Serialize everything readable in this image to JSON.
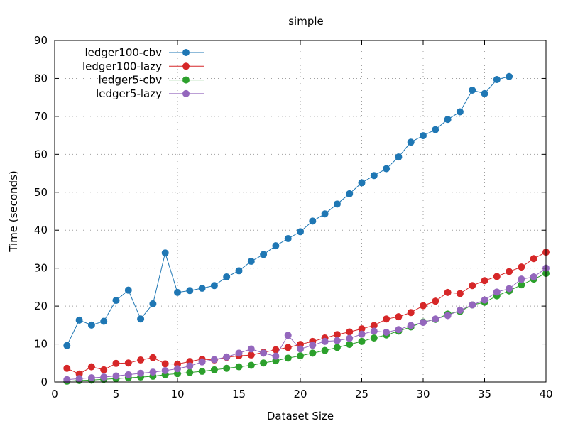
{
  "chart_data": {
    "type": "line",
    "title": "simple",
    "xlabel": "Dataset Size",
    "ylabel": "Time (seconds)",
    "xlim": [
      0,
      40
    ],
    "ylim": [
      0,
      90
    ],
    "xticks": [
      0,
      5,
      10,
      15,
      20,
      25,
      30,
      35,
      40
    ],
    "yticks": [
      0,
      10,
      20,
      30,
      40,
      50,
      60,
      70,
      80,
      90
    ],
    "grid": true,
    "legend_position": "top-left",
    "series": [
      {
        "name": "ledger100-cbv",
        "color": "#1f77b4",
        "x": [
          1,
          2,
          3,
          4,
          5,
          6,
          7,
          8,
          9,
          10,
          11,
          12,
          13,
          14,
          15,
          16,
          17,
          18,
          19,
          20,
          21,
          22,
          23,
          24,
          25,
          26,
          27,
          28,
          29,
          30,
          31,
          32,
          33,
          34,
          35,
          36,
          37
        ],
        "y": [
          9.6,
          16.3,
          15.0,
          16.0,
          21.5,
          24.2,
          16.6,
          20.6,
          34.0,
          23.6,
          24.1,
          24.7,
          25.4,
          27.7,
          29.3,
          31.8,
          33.6,
          35.9,
          37.8,
          39.6,
          42.4,
          44.3,
          46.9,
          49.6,
          52.5,
          54.4,
          56.2,
          59.3,
          63.2,
          64.9,
          66.5,
          69.2,
          71.2,
          76.9,
          76.0,
          79.7,
          80.5
        ]
      },
      {
        "name": "ledger100-lazy",
        "color": "#d62728",
        "x": [
          1,
          2,
          3,
          4,
          5,
          6,
          7,
          8,
          9,
          10,
          11,
          12,
          13,
          14,
          15,
          16,
          17,
          18,
          19,
          20,
          21,
          22,
          23,
          24,
          25,
          26,
          27,
          28,
          29,
          30,
          31,
          32,
          33,
          34,
          35,
          36,
          37,
          38,
          39,
          40
        ],
        "y": [
          3.6,
          2.1,
          4.0,
          3.2,
          4.9,
          5.0,
          5.8,
          6.4,
          4.8,
          4.7,
          5.4,
          6.0,
          5.8,
          6.5,
          6.9,
          7.1,
          7.8,
          8.5,
          9.1,
          9.9,
          10.7,
          11.6,
          12.5,
          13.2,
          14.0,
          14.9,
          16.6,
          17.2,
          18.3,
          20.1,
          21.3,
          23.6,
          23.3,
          25.4,
          26.7,
          27.8,
          29.1,
          30.3,
          32.5,
          34.2
        ]
      },
      {
        "name": "ledger5-cbv",
        "color": "#2ca02c",
        "x": [
          1,
          2,
          3,
          4,
          5,
          6,
          7,
          8,
          9,
          10,
          11,
          12,
          13,
          14,
          15,
          16,
          17,
          18,
          19,
          20,
          21,
          22,
          23,
          24,
          25,
          26,
          27,
          28,
          29,
          30,
          31,
          32,
          33,
          34,
          35,
          36,
          37,
          38,
          39,
          40
        ],
        "y": [
          0.2,
          0.4,
          0.5,
          0.7,
          0.9,
          1.1,
          1.3,
          1.5,
          1.9,
          2.2,
          2.5,
          2.8,
          3.2,
          3.6,
          4.0,
          4.4,
          5.0,
          5.6,
          6.3,
          6.9,
          7.6,
          8.3,
          9.1,
          9.9,
          10.7,
          11.6,
          12.4,
          13.4,
          14.5,
          15.8,
          16.5,
          17.9,
          18.6,
          20.3,
          21.0,
          22.7,
          24.0,
          25.6,
          27.1,
          28.6
        ]
      },
      {
        "name": "ledger5-lazy",
        "color": "#9467bd",
        "x": [
          1,
          2,
          3,
          4,
          5,
          6,
          7,
          8,
          9,
          10,
          11,
          12,
          13,
          14,
          15,
          16,
          17,
          18,
          19,
          20,
          21,
          22,
          23,
          24,
          25,
          26,
          27,
          28,
          29,
          30,
          31,
          32,
          33,
          34,
          35,
          36,
          37,
          38,
          39,
          40
        ],
        "y": [
          0.6,
          0.9,
          1.1,
          1.3,
          1.6,
          1.9,
          2.3,
          2.6,
          3.0,
          3.5,
          4.2,
          5.3,
          5.9,
          6.6,
          7.6,
          8.7,
          7.6,
          6.8,
          12.3,
          8.7,
          9.7,
          10.7,
          10.9,
          11.5,
          12.6,
          13.4,
          13.1,
          13.8,
          14.9,
          15.7,
          16.6,
          17.5,
          18.9,
          20.3,
          21.6,
          23.7,
          24.6,
          27.1,
          27.7,
          30.0
        ]
      }
    ]
  }
}
